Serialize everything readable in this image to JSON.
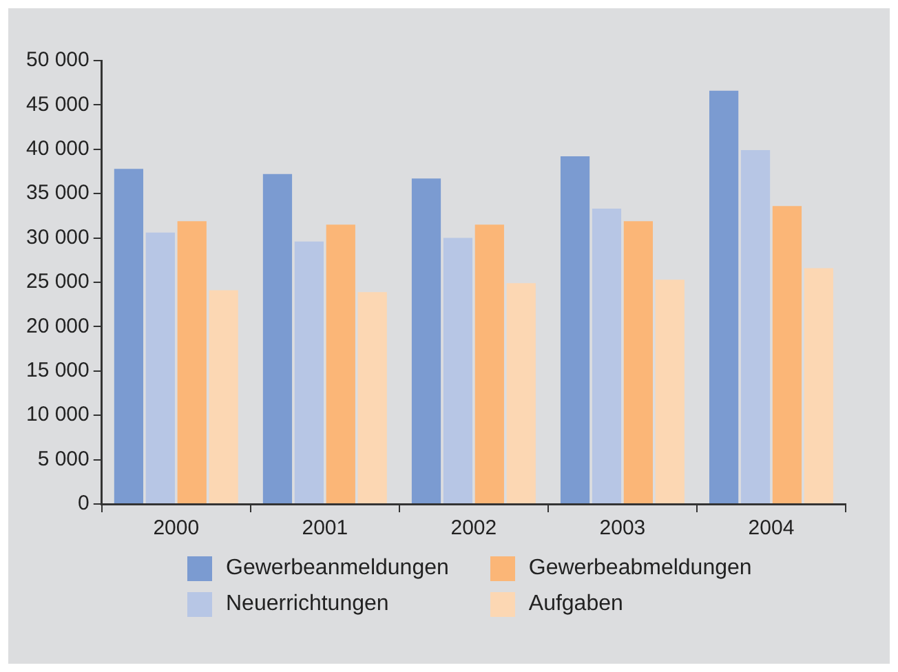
{
  "chart_data": {
    "type": "bar",
    "categories": [
      "2000",
      "2001",
      "2002",
      "2003",
      "2004"
    ],
    "series": [
      {
        "name": "Gewerbeanmeldungen",
        "color": "#7b9bd1",
        "values": [
          37800,
          37200,
          36700,
          39200,
          46600
        ]
      },
      {
        "name": "Neuerrichtungen",
        "color": "#b7c6e5",
        "values": [
          30600,
          29600,
          30000,
          33300,
          39900
        ]
      },
      {
        "name": "Gewerbeabmeldungen",
        "color": "#fbb677",
        "values": [
          31900,
          31500,
          31500,
          31900,
          33600
        ]
      },
      {
        "name": "Aufgaben",
        "color": "#fcd7b3",
        "values": [
          24100,
          23900,
          24900,
          25300,
          26600
        ]
      }
    ],
    "ylim": [
      0,
      50000
    ],
    "yticks": [
      0,
      {
        "value": 5000,
        "label": "5 000"
      },
      {
        "value": 10000,
        "label": "10 000"
      },
      {
        "value": 15000,
        "label": "15 000"
      },
      {
        "value": 20000,
        "label": "20 000"
      },
      {
        "value": 25000,
        "label": "25 000"
      },
      {
        "value": 30000,
        "label": "30 000"
      },
      {
        "value": 35000,
        "label": "35 000"
      },
      {
        "value": 40000,
        "label": "40 000"
      },
      {
        "value": 45000,
        "label": "45 000"
      },
      {
        "value": 50000,
        "label": "50 000"
      }
    ],
    "grid": false,
    "legend": "bottom"
  }
}
